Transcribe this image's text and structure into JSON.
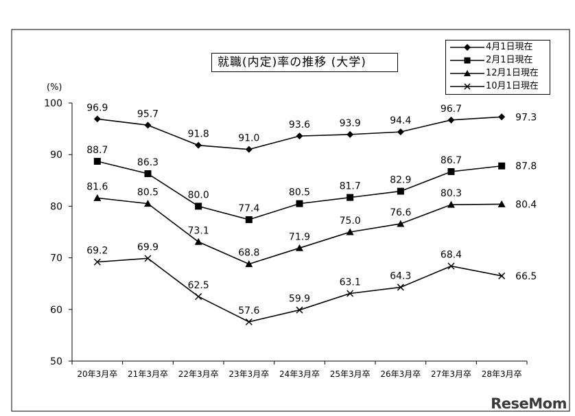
{
  "chart_data": {
    "type": "line",
    "title": "就職(内定)率の推移 (大学)",
    "ylabel": "(%)",
    "ylim": [
      50,
      100
    ],
    "yticks": [
      50,
      60,
      70,
      80,
      90,
      100
    ],
    "categories": [
      "20年3月卒",
      "21年3月卒",
      "22年3月卒",
      "23年3月卒",
      "24年3月卒",
      "25年3月卒",
      "26年3月卒",
      "27年3月卒",
      "28年3月卒"
    ],
    "series": [
      {
        "name": "4月1日現在",
        "marker": "diamond",
        "values": [
          96.9,
          95.7,
          91.8,
          91.0,
          93.6,
          93.9,
          94.4,
          96.7,
          97.3
        ]
      },
      {
        "name": "2月1日現在",
        "marker": "square",
        "values": [
          88.7,
          86.3,
          80.0,
          77.4,
          80.5,
          81.7,
          82.9,
          86.7,
          87.8
        ]
      },
      {
        "name": "12月1日現在",
        "marker": "triangle",
        "values": [
          81.6,
          80.5,
          73.1,
          68.8,
          71.9,
          75.0,
          76.6,
          80.3,
          80.4
        ]
      },
      {
        "name": "10月1日現在",
        "marker": "cross",
        "values": [
          69.2,
          69.9,
          62.5,
          57.6,
          59.9,
          63.1,
          64.3,
          68.4,
          66.5
        ]
      }
    ],
    "data_labels": [
      [
        "96.9",
        "95.7",
        "91.8",
        "91.0",
        "93.6",
        "93.9",
        "94.4",
        "96.7",
        "97.3"
      ],
      [
        "88.7",
        "86.3",
        "80.0",
        "77.4",
        "80.5",
        "81.7",
        "82.9",
        "86.7",
        "87.8"
      ],
      [
        "81.6",
        "80.5",
        "73.1",
        "68.8",
        "71.9",
        "75.0",
        "76.6",
        "80.3",
        "80.4"
      ],
      [
        "69.2",
        "69.9",
        "62.5",
        "57.6",
        "59.9",
        "63.1",
        "64.3",
        "68.4",
        "66.5"
      ]
    ],
    "legend_position": "top-right",
    "grid": false
  },
  "watermark": "ReseMom",
  "colors": {
    "line": "#000000",
    "background": "#ffffff"
  }
}
